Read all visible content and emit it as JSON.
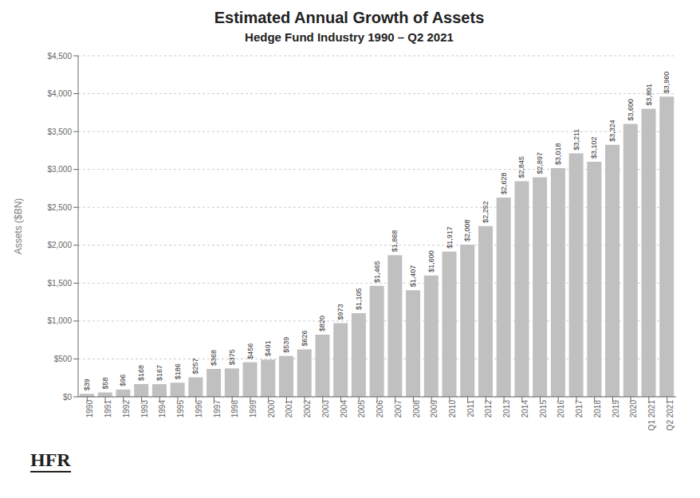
{
  "chart_data": {
    "type": "bar",
    "title": "Estimated Annual Growth of Assets",
    "subtitle": "Hedge Fund Industry 1990 – Q2 2021",
    "ylabel": "Assets ($BN)",
    "categories": [
      "1990",
      "1991",
      "1992",
      "1993",
      "1994",
      "1995",
      "1996",
      "1997",
      "1998",
      "1999",
      "2000",
      "2001",
      "2002",
      "2003",
      "2004",
      "2005",
      "2006",
      "2007",
      "2008",
      "2009",
      "2010",
      "2011",
      "2012",
      "2013",
      "2014",
      "2015",
      "2016",
      "2017",
      "2018",
      "2019",
      "2020",
      "Q1 2021",
      "Q2 2021"
    ],
    "values": [
      39,
      58,
      96,
      168,
      167,
      186,
      257,
      368,
      375,
      456,
      491,
      539,
      626,
      820,
      973,
      1105,
      1465,
      1868,
      1407,
      1600,
      1917,
      2008,
      2252,
      2628,
      2845,
      2897,
      3018,
      3211,
      3102,
      3324,
      3600,
      3801,
      3960
    ],
    "value_labels": [
      "$39",
      "$58",
      "$96",
      "$168",
      "$167",
      "$186",
      "$257",
      "$368",
      "$375",
      "$456",
      "$491",
      "$539",
      "$626",
      "$820",
      "$973",
      "$1,105",
      "$1,465",
      "$1,868",
      "$1,407",
      "$1,600",
      "$1,917",
      "$2,008",
      "$2,252",
      "$2,628",
      "$2,845",
      "$2,897",
      "$3,018",
      "$3,211",
      "$3,102",
      "$3,324",
      "$3,600",
      "$3,801",
      "$3,960"
    ],
    "data_labels": true,
    "color": "#C0C0C0",
    "ylim": [
      0,
      4500
    ],
    "yticks": [
      {
        "value": 0,
        "label": "$0"
      },
      {
        "value": 500,
        "label": "$500"
      },
      {
        "value": 1000,
        "label": "$1,000"
      },
      {
        "value": 1500,
        "label": "$1,500"
      },
      {
        "value": 2000,
        "label": "$2,000"
      },
      {
        "value": 2500,
        "label": "$2,500"
      },
      {
        "value": 3000,
        "label": "$3,000"
      },
      {
        "value": 3500,
        "label": "$3,500"
      },
      {
        "value": 4000,
        "label": "$4,000"
      },
      {
        "value": 4500,
        "label": "$4,500"
      }
    ],
    "grid": true,
    "annotations": [
      "HFR"
    ]
  }
}
